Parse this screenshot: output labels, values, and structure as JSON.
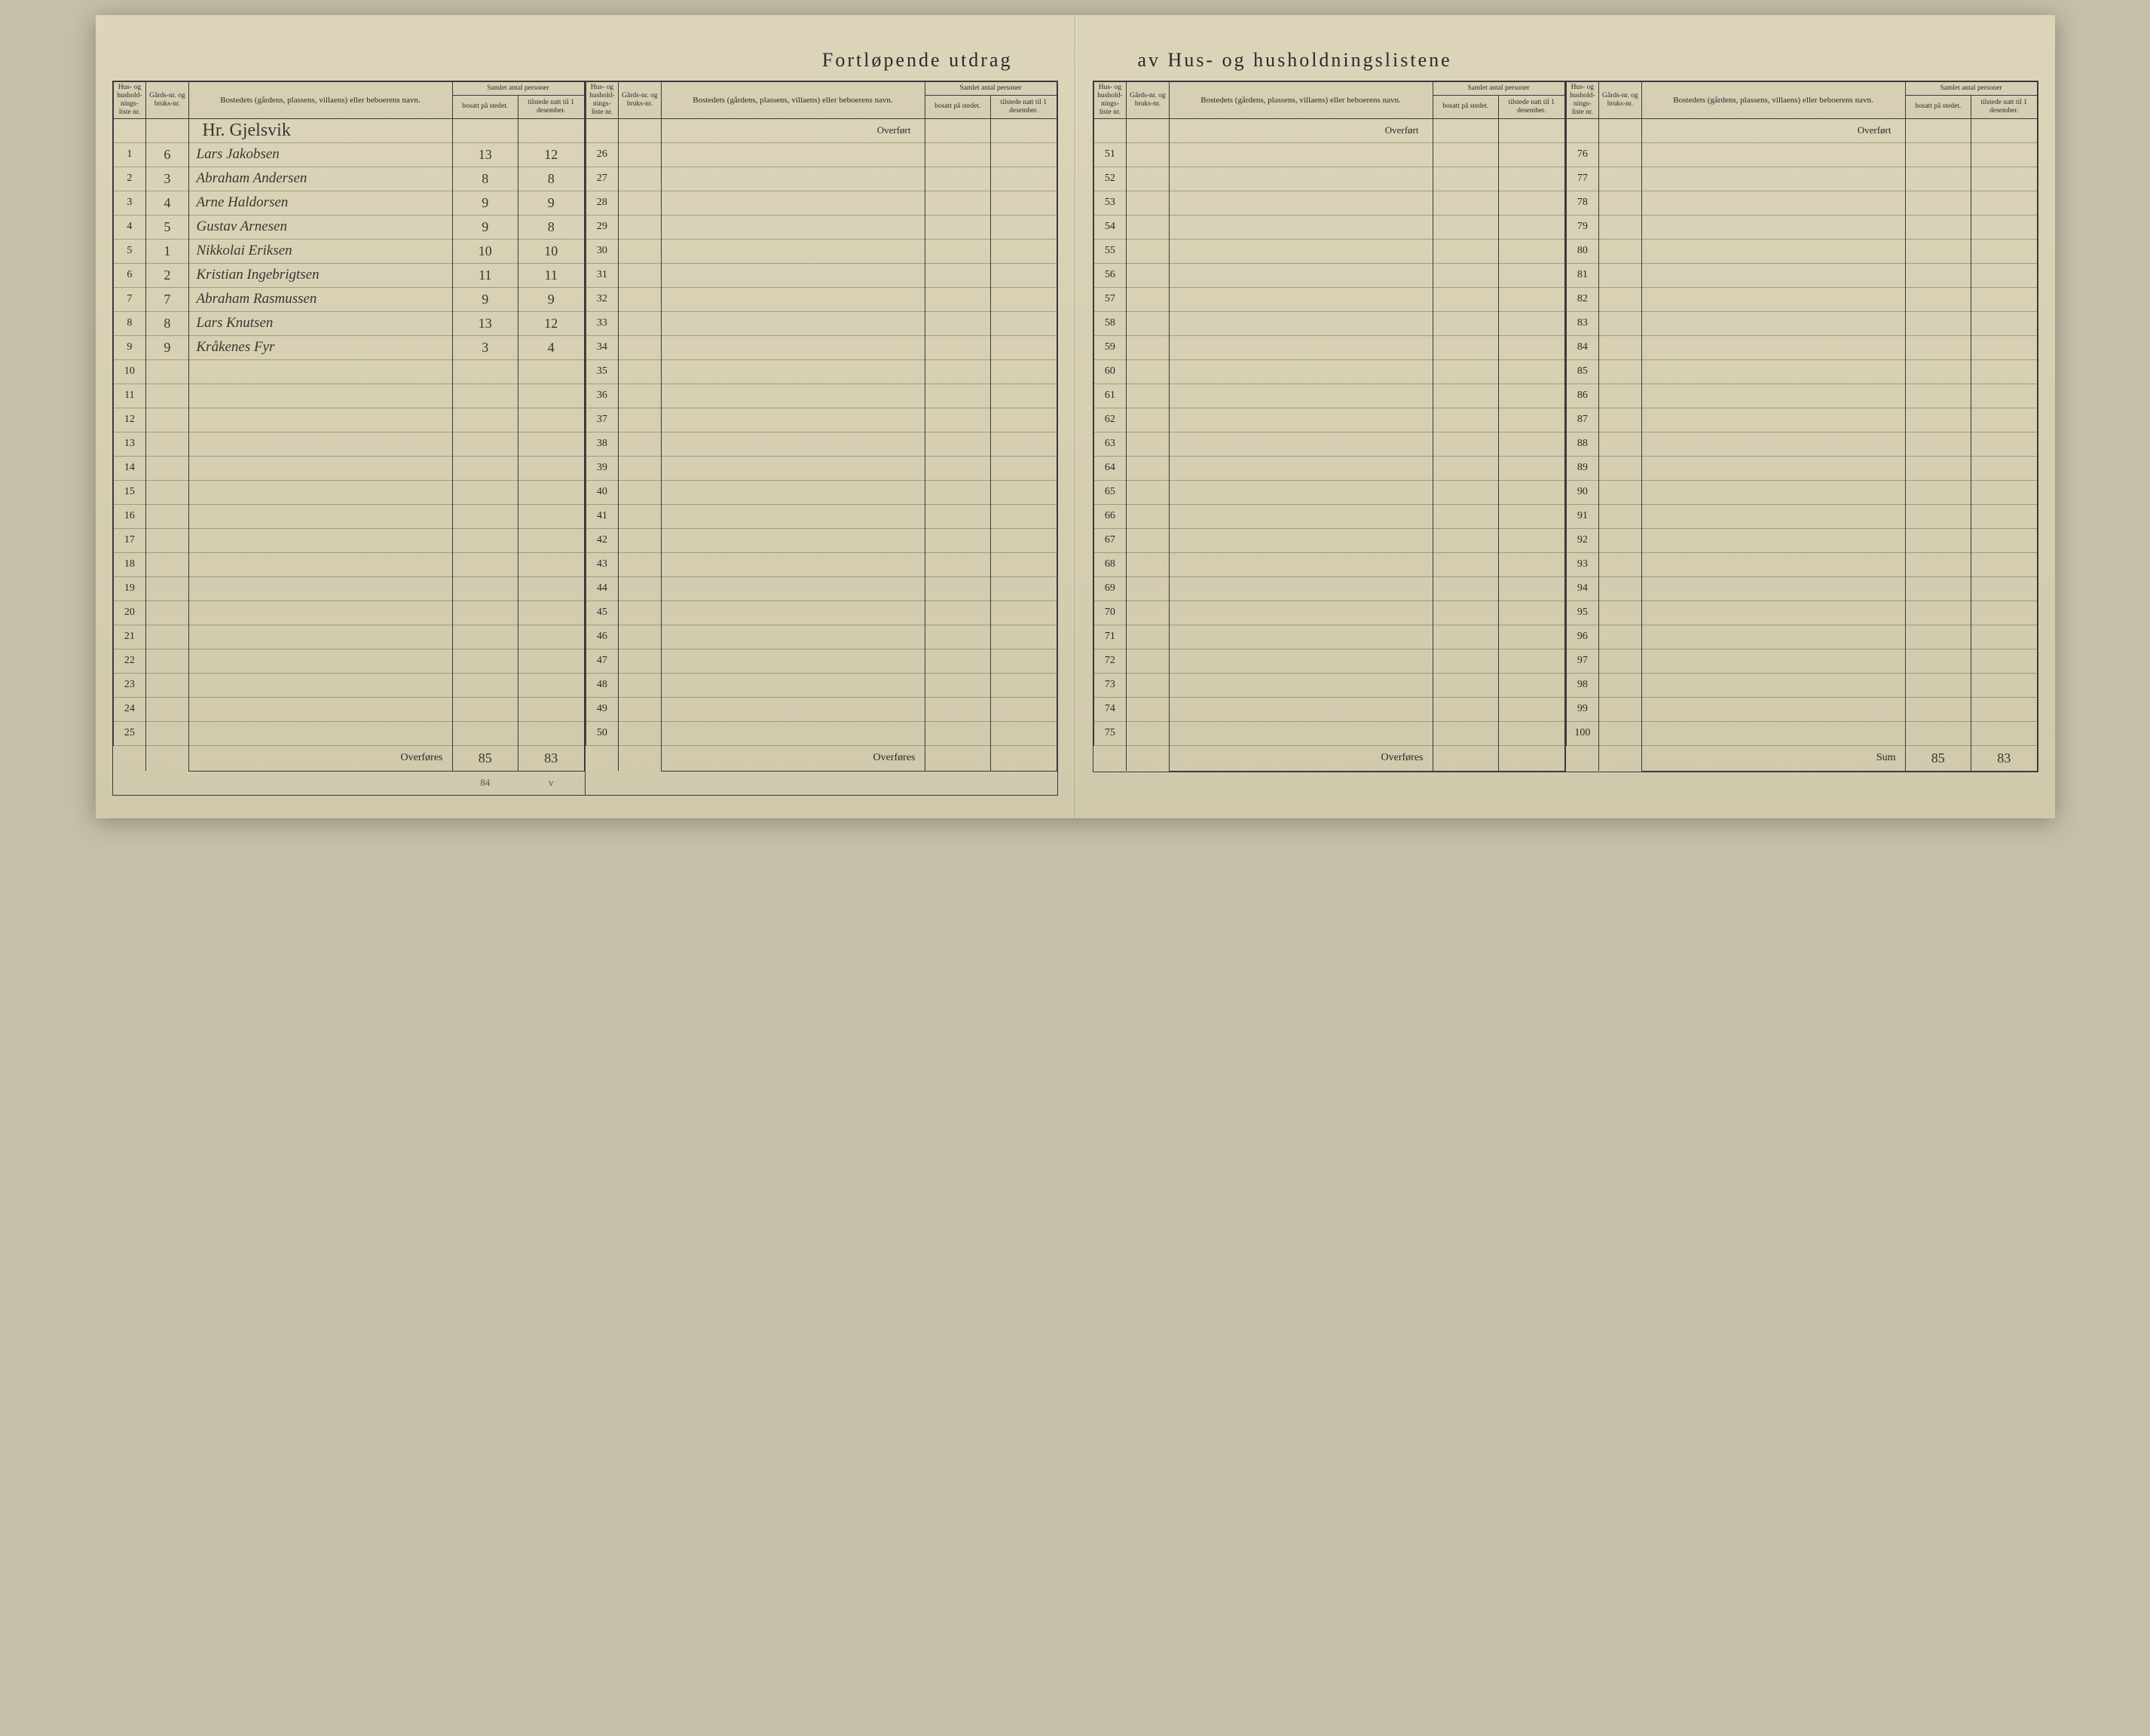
{
  "title_left": "Fortløpende utdrag",
  "title_right": "av Hus- og husholdningslistene",
  "headers": {
    "nr": "Hus- og hushold-nings-liste nr.",
    "gard": "Gårds-nr. og bruks-nr.",
    "bosted": "Bostedets (gårdens, plassens, villaens) eller beboerens navn.",
    "samlet": "Samlet antal personer",
    "bosatt": "bosatt på stedet.",
    "tilstede": "tilstede natt til 1 desember."
  },
  "overfort": "Overført",
  "overfores": "Overføres",
  "sum": "Sum",
  "area_heading": "Hr. Gjelsvik",
  "entries": [
    {
      "nr": "1",
      "gard": "6",
      "name": "Lars Jakobsen",
      "b": "13",
      "t": "12"
    },
    {
      "nr": "2",
      "gard": "3",
      "name": "Abraham Andersen",
      "b": "8",
      "t": "8"
    },
    {
      "nr": "3",
      "gard": "4",
      "name": "Arne Haldorsen",
      "b": "9",
      "t": "9"
    },
    {
      "nr": "4",
      "gard": "5",
      "name": "Gustav Arnesen",
      "b": "9",
      "t": "8"
    },
    {
      "nr": "5",
      "gard": "1",
      "name": "Nikkolai Eriksen",
      "b": "10",
      "t": "10"
    },
    {
      "nr": "6",
      "gard": "2",
      "name": "Kristian Ingebrigtsen",
      "b": "11",
      "t": "11"
    },
    {
      "nr": "7",
      "gard": "7",
      "name": "Abraham Rasmussen",
      "b": "9",
      "t": "9"
    },
    {
      "nr": "8",
      "gard": "8",
      "name": "Lars Knutsen",
      "b": "13",
      "t": "12"
    },
    {
      "nr": "9",
      "gard": "9",
      "name": "Kråkenes Fyr",
      "b": "3",
      "t": "4"
    }
  ],
  "col1_rows_total": 25,
  "panels": [
    {
      "start": 1,
      "end": 25,
      "has_data": true,
      "footer": "overfores",
      "footer_b": "85",
      "footer_t": "83",
      "note_b": "84",
      "note_t": "v"
    },
    {
      "start": 26,
      "end": 50,
      "has_data": false,
      "footer": "overfores",
      "footer_b": "",
      "footer_t": ""
    },
    {
      "start": 51,
      "end": 75,
      "has_data": false,
      "footer": "overfores",
      "footer_b": "",
      "footer_t": ""
    },
    {
      "start": 76,
      "end": 100,
      "has_data": false,
      "footer": "sum",
      "footer_b": "85",
      "footer_t": "83"
    }
  ]
}
